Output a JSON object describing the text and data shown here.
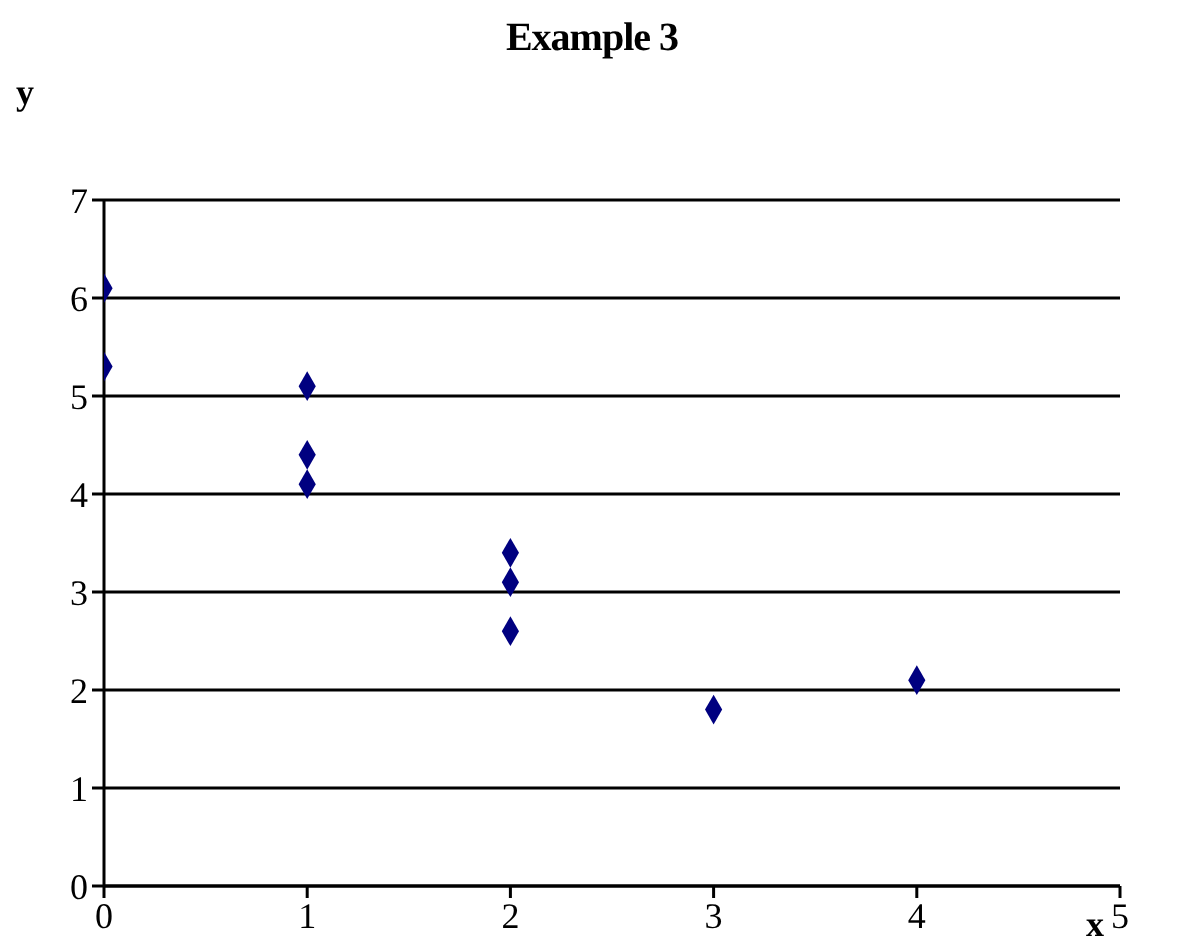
{
  "chart_data": {
    "type": "scatter",
    "title": "Example 3",
    "xlabel": "x",
    "ylabel": "y",
    "x": [
      0,
      0,
      1,
      1,
      1,
      2,
      2,
      2,
      3,
      4
    ],
    "values": [
      6.1,
      5.3,
      5.1,
      4.4,
      4.1,
      3.4,
      3.1,
      2.6,
      1.8,
      2.1
    ],
    "color": "#000080",
    "marker": "diamond",
    "grid": "y",
    "xlim": [
      0,
      5
    ],
    "xticks": [
      0,
      1,
      2,
      3,
      4,
      5
    ],
    "ylim": [
      0,
      7
    ],
    "yticks": [
      0,
      1,
      2,
      3,
      4,
      5,
      6,
      7
    ]
  }
}
